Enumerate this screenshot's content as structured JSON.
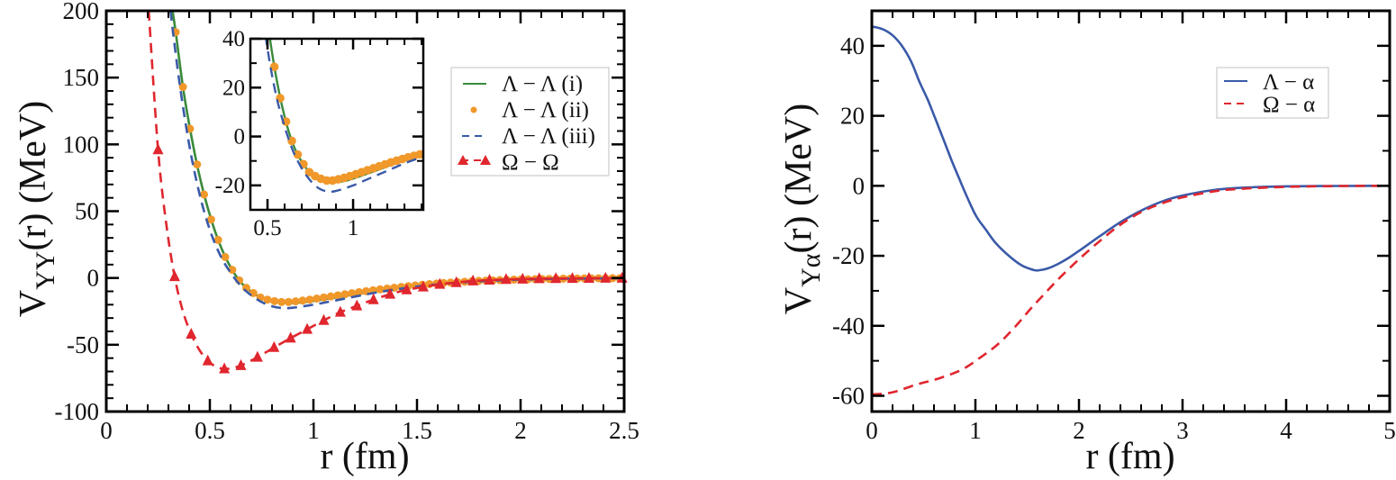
{
  "chart_data": [
    {
      "type": "line",
      "id": "left",
      "title": "",
      "xlabel": "r (fm)",
      "ylabel_main": "V",
      "ylabel_sub": "YY",
      "ylabel_rest": "(r) (MeV)",
      "xlim": [
        0,
        2.5
      ],
      "ylim": [
        -100,
        200
      ],
      "xticks": [
        0,
        0.5,
        1,
        1.5,
        2,
        2.5
      ],
      "xtick_labels": [
        "0",
        "0.5",
        "1",
        "1.5",
        "2",
        "2.5"
      ],
      "yticks": [
        -100,
        -50,
        0,
        50,
        100,
        150,
        200
      ],
      "ytick_labels": [
        "-100",
        "-50",
        "0",
        "50",
        "100",
        "150",
        "200"
      ],
      "grid": false,
      "legend_position": "top-right",
      "series": [
        {
          "name": "Λ − Λ (i)",
          "style": "solid",
          "color": "#3a8a3a",
          "x": [
            0.32,
            0.335,
            0.37,
            0.404,
            0.438,
            0.472,
            0.506,
            0.54,
            0.574,
            0.608,
            0.642,
            0.676,
            0.71,
            0.745,
            0.78,
            0.81,
            0.85,
            0.9,
            0.95,
            1.0,
            1.1,
            1.2,
            1.3,
            1.4,
            1.5,
            1.6,
            1.7,
            1.8,
            1.9,
            2.0,
            2.2,
            2.5
          ],
          "y": [
            200,
            184,
            143,
            112,
            85,
            62.5,
            44,
            28.5,
            16,
            6,
            -1.8,
            -7.4,
            -11.3,
            -14.6,
            -16.5,
            -17.8,
            -18.6,
            -18.7,
            -18.2,
            -17.2,
            -14.8,
            -12.2,
            -9.9,
            -7.8,
            -6,
            -4.5,
            -3.3,
            -2.3,
            -1.6,
            -1.1,
            -0.5,
            -0.15
          ]
        },
        {
          "name": "Λ − Λ (ii)",
          "style": "dots",
          "color": "#f0982a",
          "x": [
            0.335,
            0.37,
            0.404,
            0.438,
            0.472,
            0.506,
            0.54,
            0.574,
            0.608,
            0.642,
            0.676,
            0.71,
            0.744,
            0.778,
            0.812,
            0.846,
            0.88,
            0.914,
            0.948,
            0.982,
            1.016,
            1.05,
            1.084,
            1.118,
            1.152,
            1.186,
            1.22,
            1.254,
            1.288,
            1.322,
            1.356,
            1.39,
            1.424,
            1.458,
            1.492,
            1.526,
            1.56,
            1.594,
            1.628,
            1.662,
            1.696,
            1.73,
            1.764,
            1.798,
            1.832,
            1.866,
            1.9,
            1.934,
            1.968,
            2.002,
            2.036,
            2.07,
            2.104,
            2.138,
            2.172,
            2.206,
            2.24,
            2.274,
            2.308,
            2.342,
            2.376,
            2.41,
            2.444,
            2.478
          ],
          "y": [
            184,
            143,
            111.7,
            85,
            62.5,
            43.8,
            28.5,
            15.7,
            6.1,
            -1.8,
            -7.4,
            -11.3,
            -14.6,
            -16.2,
            -17.3,
            -18,
            -18,
            -17.5,
            -16.9,
            -16.2,
            -15.4,
            -14.6,
            -13.8,
            -13,
            -12.2,
            -11.4,
            -10.6,
            -9.9,
            -9.2,
            -8.5,
            -7.9,
            -7.3,
            -6.7,
            -6.1,
            -5.6,
            -5.1,
            -4.6,
            -4.2,
            -3.8,
            -3.4,
            -3.1,
            -2.8,
            -2.5,
            -2.2,
            -2,
            -1.8,
            -1.6,
            -1.4,
            -1.25,
            -1.1,
            -1,
            -0.9,
            -0.8,
            -0.7,
            -0.6,
            -0.5,
            -0.45,
            -0.4,
            -0.35,
            -0.3,
            -0.25,
            -0.2,
            -0.18,
            -0.15
          ]
        },
        {
          "name": "Λ − Λ (iii)",
          "style": "dashed",
          "color": "#3a5aa8",
          "x": [
            0.31,
            0.35,
            0.4,
            0.45,
            0.5,
            0.55,
            0.6,
            0.65,
            0.7,
            0.75,
            0.8,
            0.85,
            0.9,
            1.0,
            1.1,
            1.2,
            1.3,
            1.4,
            1.5,
            1.6,
            1.7,
            1.8,
            2.0,
            2.2,
            2.5
          ],
          "y": [
            200,
            150,
            100,
            63,
            36,
            17,
            4,
            -6,
            -13,
            -18,
            -21.2,
            -22.5,
            -22.3,
            -20,
            -17,
            -14,
            -11,
            -8.5,
            -6.4,
            -4.8,
            -3.5,
            -2.5,
            -1.2,
            -0.6,
            -0.2
          ]
        },
        {
          "name": "Ω − Ω",
          "style": "dashed-triangles",
          "color": "#e0262e",
          "x": [
            0.205,
            0.25,
            0.29,
            0.33,
            0.37,
            0.41,
            0.45,
            0.49,
            0.53,
            0.57,
            0.61,
            0.65,
            0.69,
            0.73,
            0.77,
            0.81,
            0.85,
            0.89,
            0.93,
            0.97,
            1.01,
            1.05,
            1.09,
            1.13,
            1.17,
            1.21,
            1.25,
            1.29,
            1.33,
            1.37,
            1.41,
            1.45,
            1.49,
            1.53,
            1.57,
            1.61,
            1.65,
            1.69,
            1.73,
            1.77,
            1.81,
            1.85,
            1.89,
            1.93,
            1.97,
            2.01,
            2.05,
            2.09,
            2.13,
            2.17,
            2.21,
            2.25,
            2.29,
            2.33,
            2.37,
            2.41,
            2.45,
            2.49
          ],
          "y": [
            200,
            96,
            40,
            1,
            -25,
            -42,
            -54,
            -62,
            -66.5,
            -68,
            -67.5,
            -65.5,
            -62.6,
            -59.3,
            -55.7,
            -52,
            -48.5,
            -45,
            -41.7,
            -38.4,
            -35,
            -31.7,
            -28.6,
            -25.6,
            -23.2,
            -20.9,
            -18.5,
            -16.2,
            -14.1,
            -12.1,
            -10.4,
            -8.8,
            -7.7,
            -6.7,
            -5.7,
            -4.7,
            -4,
            -3.4,
            -2.8,
            -2.2,
            -1.9,
            -1.6,
            -1.35,
            -1.1,
            -0.95,
            -0.8,
            -0.65,
            -0.5,
            -0.45,
            -0.4,
            -0.35,
            -0.3,
            -0.25,
            -0.2,
            -0.18,
            -0.15,
            -0.12,
            -0.1
          ],
          "marker_x": [
            0.25,
            0.33,
            0.41,
            0.49,
            0.57,
            0.65,
            0.73,
            0.81,
            0.89,
            0.97,
            1.05,
            1.13,
            1.21,
            1.29,
            1.37,
            1.45,
            1.53,
            1.61,
            1.69,
            1.77,
            1.85,
            1.93,
            2.01,
            2.09,
            2.17,
            2.25,
            2.33,
            2.41,
            2.49
          ]
        }
      ],
      "inset": {
        "xlim": [
          0.4,
          1.41
        ],
        "ylim": [
          -30,
          40
        ],
        "xticks": [
          0.5,
          1
        ],
        "xtick_labels": [
          "0.5",
          "1"
        ],
        "yticks": [
          -20,
          0,
          20,
          40
        ],
        "ytick_labels": [
          "-20",
          "0",
          "20",
          "40"
        ],
        "series_refs": [
          "Λ − Λ (i)",
          "Λ − Λ (ii)",
          "Λ − Λ (iii)"
        ]
      }
    },
    {
      "type": "line",
      "id": "right",
      "title": "",
      "xlabel": "r (fm)",
      "ylabel_main": "V",
      "ylabel_sub": "Yα",
      "ylabel_rest": "(r) (MeV)",
      "xlim": [
        0,
        5
      ],
      "ylim": [
        -64.5,
        50
      ],
      "xticks": [
        0,
        1,
        2,
        3,
        4,
        5
      ],
      "xtick_labels": [
        "0",
        "1",
        "2",
        "3",
        "4",
        "5"
      ],
      "yticks": [
        -60,
        -40,
        -20,
        0,
        20,
        40
      ],
      "ytick_labels": [
        "-60",
        "-40",
        "-20",
        "0",
        "20",
        "40"
      ],
      "grid": false,
      "legend_position": "top-right",
      "series": [
        {
          "name": "Λ − α",
          "style": "solid",
          "color": "#3a5aa8",
          "x": [
            0,
            0.1,
            0.2,
            0.29,
            0.38,
            0.46,
            0.54,
            0.61,
            0.69,
            0.77,
            0.85,
            0.93,
            1.01,
            1.1,
            1.2,
            1.33,
            1.45,
            1.57,
            1.62,
            1.7,
            1.8,
            1.9,
            2.0,
            2.2,
            2.4,
            2.6,
            2.8,
            3.0,
            3.3,
            3.6,
            4.0,
            4.5,
            5.0
          ],
          "y": [
            45.5,
            44.8,
            43,
            40,
            35.5,
            29.7,
            24.6,
            19.4,
            13.4,
            7.3,
            1.6,
            -3.9,
            -8.8,
            -12.5,
            -16.5,
            -20.2,
            -22.8,
            -24.1,
            -24.1,
            -23.6,
            -22.3,
            -20.6,
            -18.6,
            -14.4,
            -10.4,
            -7.1,
            -4.5,
            -2.8,
            -1.2,
            -0.5,
            -0.15,
            -0.04,
            0
          ]
        },
        {
          "name": "Ω − α",
          "style": "dashed",
          "color": "#e0262e",
          "x": [
            0,
            0.2,
            0.43,
            0.65,
            0.87,
            1.05,
            1.22,
            1.38,
            1.54,
            1.67,
            1.8,
            2.0,
            2.2,
            2.4,
            2.6,
            2.8,
            3.0,
            3.32,
            3.6,
            4.0,
            4.5,
            5.0
          ],
          "y": [
            -59.6,
            -59,
            -56.8,
            -55,
            -52.5,
            -49,
            -45.2,
            -40.4,
            -34.9,
            -30.8,
            -26.7,
            -21,
            -15.8,
            -11.1,
            -7.5,
            -5,
            -3.3,
            -1.5,
            -0.8,
            -0.3,
            -0.08,
            0
          ]
        }
      ]
    }
  ]
}
